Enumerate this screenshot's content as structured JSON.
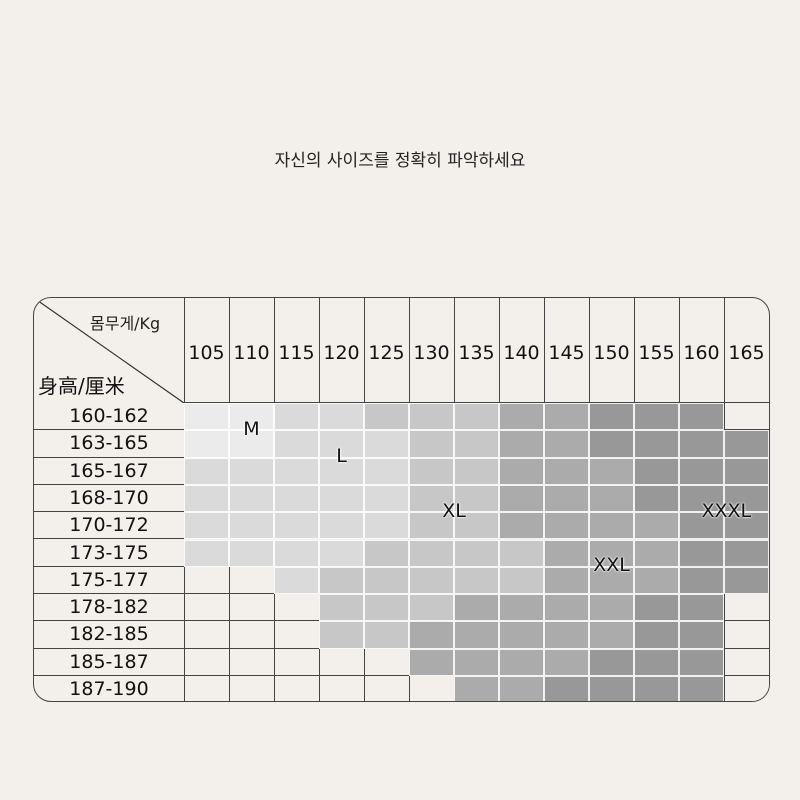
{
  "title": "자신의 사이즈를 정확히 파악하세요",
  "table": {
    "corner_weight_label": "몸무게/Kg",
    "corner_height_label": "身高/厘米",
    "weights": [
      "105",
      "110",
      "115",
      "120",
      "125",
      "130",
      "135",
      "140",
      "145",
      "150",
      "155",
      "160",
      "165"
    ],
    "heights": [
      "160-162",
      "163-165",
      "165-167",
      "168-170",
      "170-172",
      "173-175",
      "175-177",
      "178-182",
      "182-185",
      "185-187",
      "187-190"
    ],
    "size_map": [
      [
        "M",
        "M",
        "L",
        "L",
        "XL",
        "XL",
        "XL",
        "XXL",
        "XXL",
        "XXXL",
        "XXXL",
        "XXXL",
        ""
      ],
      [
        "M",
        "M",
        "L",
        "L",
        "L",
        "XL",
        "XL",
        "XXL",
        "XXL",
        "XXXL",
        "XXXL",
        "XXXL",
        "XXXL"
      ],
      [
        "L",
        "L",
        "L",
        "L",
        "L",
        "XL",
        "XL",
        "XXL",
        "XXL",
        "XXL",
        "XXXL",
        "XXXL",
        "XXXL"
      ],
      [
        "L",
        "L",
        "L",
        "L",
        "L",
        "XL",
        "XL",
        "XXL",
        "XXL",
        "XXL",
        "XXXL",
        "XXXL",
        "XXXL"
      ],
      [
        "L",
        "L",
        "L",
        "L",
        "L",
        "XL",
        "XL",
        "XXL",
        "XXL",
        "XXL",
        "XXL",
        "XXXL",
        "XXXL"
      ],
      [
        "L",
        "L",
        "L",
        "L",
        "XL",
        "XL",
        "XL",
        "XL",
        "XXL",
        "XXL",
        "XXL",
        "XXXL",
        "XXXL"
      ],
      [
        "",
        "",
        "L",
        "XL",
        "XL",
        "XL",
        "XL",
        "XL",
        "XXL",
        "XXL",
        "XXL",
        "XXXL",
        "XXXL"
      ],
      [
        "",
        "",
        "",
        "XL",
        "XL",
        "XL",
        "XXL",
        "XXL",
        "XXL",
        "XXL",
        "XXXL",
        "XXXL",
        ""
      ],
      [
        "",
        "",
        "",
        "XL",
        "XL",
        "XXL",
        "XXL",
        "XXL",
        "XXL",
        "XXL",
        "XXXL",
        "XXXL",
        ""
      ],
      [
        "",
        "",
        "",
        "",
        "",
        "XXL",
        "XXL",
        "XXL",
        "XXL",
        "XXXL",
        "XXXL",
        "XXXL",
        ""
      ],
      [
        "",
        "",
        "",
        "",
        "",
        "",
        "XXL",
        "XXL",
        "XXXL",
        "XXXL",
        "XXXL",
        "XXXL",
        ""
      ]
    ],
    "sizes": {
      "M": "M",
      "L": "L",
      "XL": "XL",
      "XXL": "XXL",
      "XXXL": "XXXL"
    },
    "colors": {
      "M": "#ebebeb",
      "L": "#dadada",
      "XL": "#c7c7c7",
      "XXL": "#ababab",
      "XXXL": "#989898",
      "empty": "#f3f0eb"
    }
  }
}
